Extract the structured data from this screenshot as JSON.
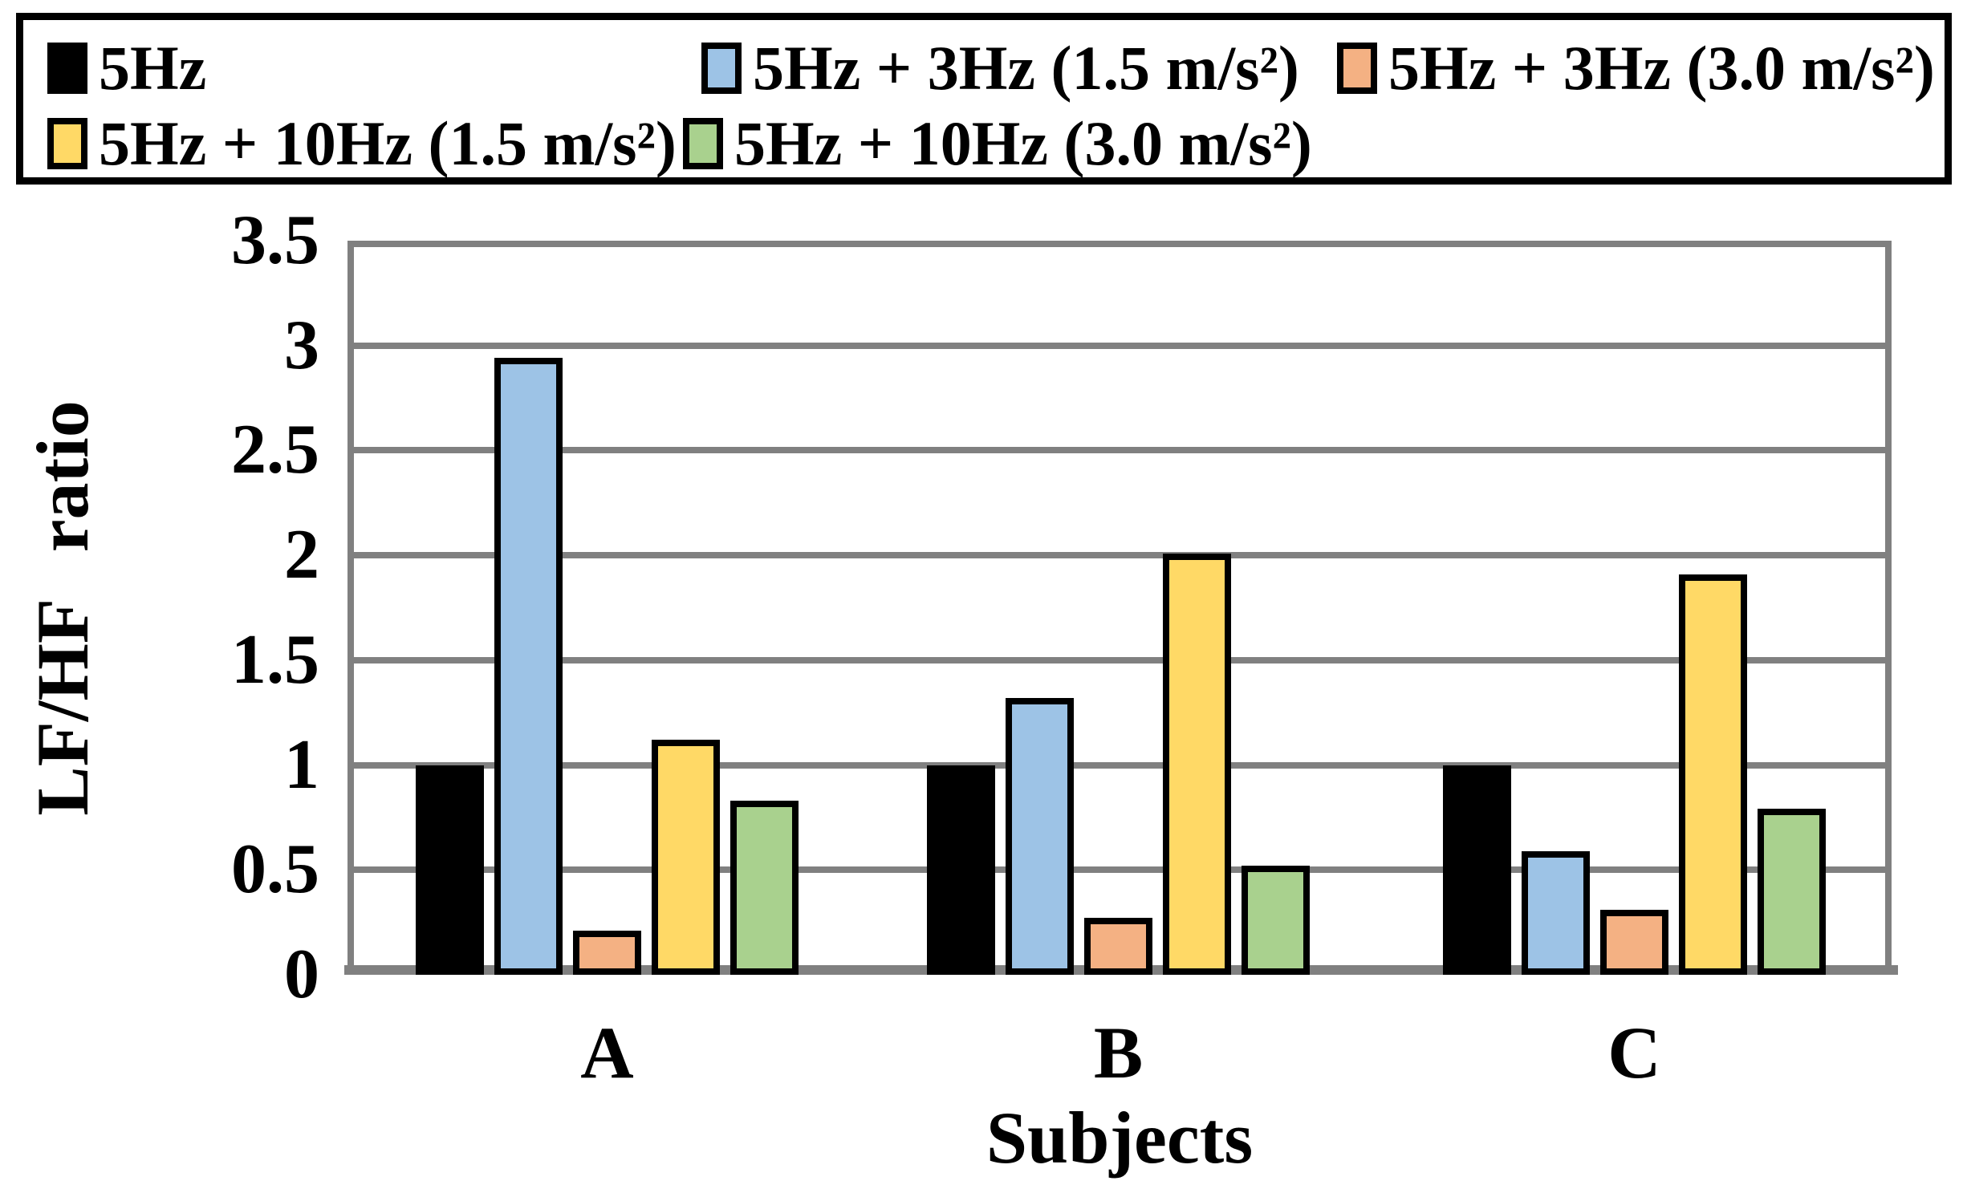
{
  "chart_data": {
    "type": "bar",
    "title": "",
    "xlabel": "Subjects",
    "ylabel": "LF/HF ratio",
    "ylim": [
      0,
      3.5
    ],
    "ytick_step": 0.5,
    "ytick_labels": [
      "0",
      "0.5",
      "1",
      "1.5",
      "2",
      "2.5",
      "3",
      "3.5"
    ],
    "categories": [
      "A",
      "B",
      "C"
    ],
    "series": [
      {
        "name": "5Hz",
        "color": "#000000",
        "values": [
          1.0,
          1.0,
          1.0
        ]
      },
      {
        "name": "5Hz + 3Hz (1.5 m/s²)",
        "color": "#9DC3E6",
        "values": [
          2.94,
          1.32,
          0.59
        ]
      },
      {
        "name": "5Hz + 3Hz (3.0 m/s²)",
        "color": "#F4B183",
        "values": [
          0.21,
          0.27,
          0.31
        ]
      },
      {
        "name": "5Hz + 10Hz (1.5 m/s²)",
        "color": "#FFD966",
        "values": [
          1.12,
          2.01,
          1.91
        ]
      },
      {
        "name": "5Hz + 10Hz (3.0 m/s²)",
        "color": "#A9D18E",
        "values": [
          0.83,
          0.52,
          0.79
        ]
      }
    ],
    "grid": true,
    "gridline_color": "#808080",
    "bar_border_color": "#000000",
    "legend_position": "top"
  }
}
